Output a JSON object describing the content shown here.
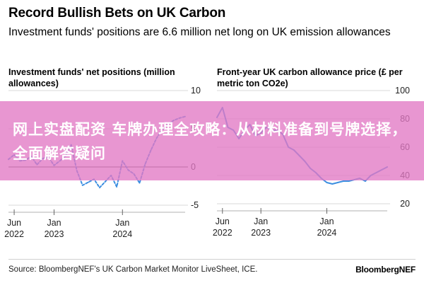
{
  "header": {
    "title": "Record Bullish Bets on UK Carbon",
    "subtitle": "Investment funds' positions are 6.6 million net long on UK emission allowances"
  },
  "footer": {
    "source": "Source: BloombergNEF's UK Carbon Market Monitor LiveSheet, ICE.",
    "brand": "BloombergNEF"
  },
  "overlay": {
    "text": "网上实盘配资 车牌办理全攻略：从材料准备到号牌选择，全面解答疑问"
  },
  "colors": {
    "series": "#3d8fe0",
    "grid": "#d9d9d9",
    "zero": "#444444",
    "banner": "#e278c4"
  },
  "chart_data": [
    {
      "type": "line",
      "title": "Investment funds' net positions (million allowances)",
      "xlabel": "",
      "ylabel": "",
      "ylim": [
        -5,
        10
      ],
      "xlim": [
        "2022-05",
        "2024-12"
      ],
      "y_ticks": [
        "10",
        "5",
        "0",
        "-5"
      ],
      "y_tick_values": [
        10,
        5,
        0,
        -5
      ],
      "x_ticks": [
        {
          "line1": "Jun",
          "line2": "2022",
          "date": "2022-06"
        },
        {
          "line1": "Jan",
          "line2": "2023",
          "date": "2023-01"
        },
        {
          "line1": "Jan",
          "line2": "2024",
          "date": "2024-01"
        }
      ],
      "grid": true,
      "style": "dashed",
      "series": [
        {
          "x": [
            "2022-05",
            "2022-06",
            "2022-07",
            "2022-08",
            "2022-09",
            "2022-10",
            "2022-11",
            "2022-12",
            "2023-01",
            "2023-02",
            "2023-03",
            "2023-04",
            "2023-05",
            "2023-06",
            "2023-07",
            "2023-08",
            "2023-09",
            "2023-10",
            "2023-11",
            "2023-12",
            "2024-01",
            "2024-02",
            "2024-03",
            "2024-04",
            "2024-05",
            "2024-06",
            "2024-07",
            "2024-08",
            "2024-09",
            "2024-10",
            "2024-11",
            "2024-12"
          ],
          "values": [
            1.0,
            1.6,
            0.8,
            0.9,
            1.4,
            0.3,
            1.1,
            1.3,
            0.2,
            0.8,
            1.4,
            2.9,
            -0.5,
            -2.4,
            -2.0,
            -1.6,
            -2.7,
            -1.9,
            -1.1,
            -2.6,
            0.8,
            -0.4,
            -0.9,
            -2.1,
            0.4,
            2.2,
            3.8,
            4.9,
            5.6,
            6.1,
            6.4,
            6.6
          ]
        }
      ]
    },
    {
      "type": "line",
      "title": "Front-year UK carbon allowance price (£ per metric ton CO2e)",
      "xlabel": "",
      "ylabel": "",
      "ylim": [
        20,
        100
      ],
      "xlim": [
        "2022-05",
        "2024-12"
      ],
      "y_ticks": [
        "100",
        "80",
        "60",
        "40",
        "20"
      ],
      "y_tick_values": [
        100,
        80,
        60,
        40,
        20
      ],
      "x_ticks": [
        {
          "line1": "Jun",
          "line2": "2022",
          "date": "2022-06"
        },
        {
          "line1": "Jan",
          "line2": "2023",
          "date": "2023-01"
        },
        {
          "line1": "Jan",
          "line2": "2024",
          "date": "2024-01"
        }
      ],
      "grid": true,
      "style": "solid",
      "series": [
        {
          "x": [
            "2022-05",
            "2022-06",
            "2022-07",
            "2022-08",
            "2022-09",
            "2022-10",
            "2022-11",
            "2022-12",
            "2023-01",
            "2023-02",
            "2023-03",
            "2023-04",
            "2023-05",
            "2023-06",
            "2023-07",
            "2023-08",
            "2023-09",
            "2023-10",
            "2023-11",
            "2023-12",
            "2024-01",
            "2024-02",
            "2024-03",
            "2024-04",
            "2024-05",
            "2024-06",
            "2024-07",
            "2024-08",
            "2024-09",
            "2024-10",
            "2024-11",
            "2024-12"
          ],
          "values": [
            81,
            88,
            74,
            72,
            66,
            72,
            76,
            68,
            70,
            74,
            72,
            72,
            69,
            60,
            58,
            54,
            50,
            45,
            42,
            38,
            35,
            34,
            35,
            36,
            36,
            37,
            38,
            36,
            40,
            42,
            44,
            46
          ]
        }
      ]
    }
  ]
}
